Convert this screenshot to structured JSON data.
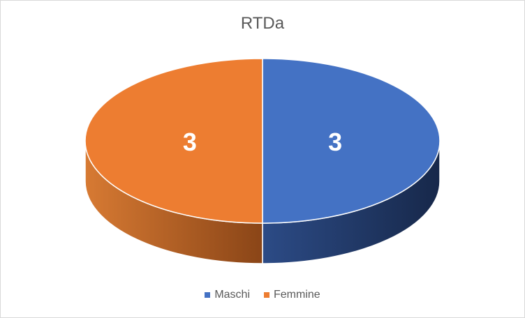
{
  "chart_data": {
    "type": "pie",
    "title": "RTDa",
    "categories": [
      "Maschi",
      "Femmine"
    ],
    "values": [
      3,
      3
    ],
    "colors": [
      "#4472C4",
      "#ED7D31"
    ],
    "legend_position": "bottom",
    "three_d": true
  }
}
